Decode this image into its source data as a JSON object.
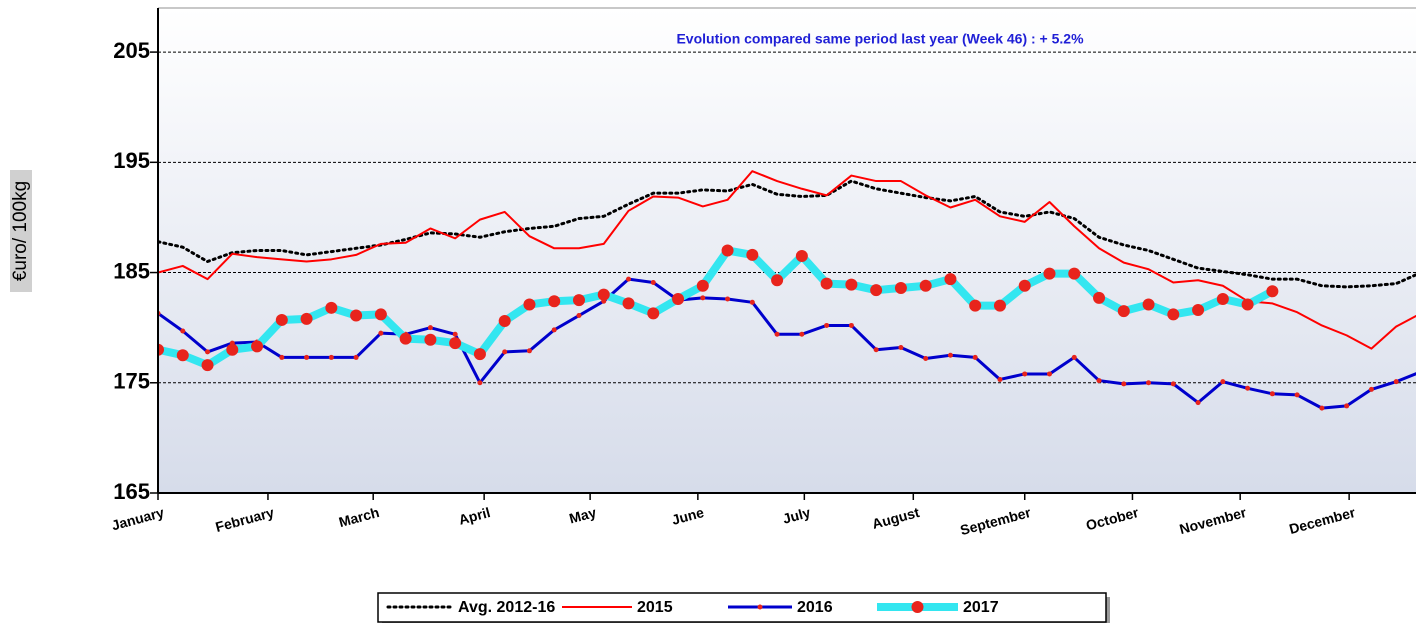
{
  "chart_data": {
    "type": "line",
    "annotation": "Evolution compared same period last year  (Week 46) : + 5.2%",
    "y_label": "€uro/ 100kg",
    "x": [
      1,
      2,
      3,
      4,
      5,
      6,
      7,
      8,
      9,
      10,
      11,
      12,
      13,
      14,
      15,
      16,
      17,
      18,
      19,
      20,
      21,
      22,
      23,
      24,
      25,
      26,
      27,
      28,
      29,
      30,
      31,
      32,
      33,
      34,
      35,
      36,
      37,
      38,
      39,
      40,
      41,
      42,
      43,
      44,
      45,
      46,
      47,
      48,
      49,
      50,
      51,
      52
    ],
    "xlim": [
      1,
      51.8
    ],
    "xticks": [
      {
        "value": 1,
        "label": "January"
      },
      {
        "value": 5.44,
        "label": "February"
      },
      {
        "value": 9.69,
        "label": "March"
      },
      {
        "value": 14.17,
        "label": "April"
      },
      {
        "value": 18.45,
        "label": "May"
      },
      {
        "value": 22.8,
        "label": "June"
      },
      {
        "value": 27.1,
        "label": "July"
      },
      {
        "value": 31.5,
        "label": "August"
      },
      {
        "value": 36.0,
        "label": "September"
      },
      {
        "value": 40.35,
        "label": "October"
      },
      {
        "value": 44.7,
        "label": "November"
      },
      {
        "value": 49.1,
        "label": "December"
      }
    ],
    "ylim": [
      165,
      209
    ],
    "yticks": [
      165,
      175,
      185,
      195,
      205
    ],
    "grid": true,
    "series": [
      {
        "name": "Avg. 2012-16",
        "color": "#000000",
        "style": "dotted",
        "values": [
          187.8,
          187.3,
          186,
          186.8,
          187,
          187,
          186.6,
          186.9,
          187.2,
          187.5,
          188,
          188.6,
          188.5,
          188.2,
          188.7,
          189,
          189.2,
          189.9,
          190.1,
          191.2,
          192.2,
          192.2,
          192.5,
          192.4,
          193,
          192.1,
          191.9,
          192,
          193.3,
          192.6,
          192.2,
          191.8,
          191.5,
          191.9,
          190.5,
          190.1,
          190.5,
          189.9,
          188.2,
          187.5,
          187,
          186.2,
          185.4,
          185.1,
          184.8,
          184.4,
          184.4,
          183.8,
          183.7,
          183.8,
          184,
          185
        ]
      },
      {
        "name": "2015",
        "color": "#ff0000",
        "style": "solid",
        "values": [
          185,
          185.6,
          184.4,
          186.7,
          186.4,
          186.2,
          186,
          186.2,
          186.6,
          187.6,
          187.7,
          189,
          188.1,
          189.8,
          190.5,
          188.3,
          187.2,
          187.2,
          187.6,
          190.6,
          191.9,
          191.8,
          191,
          191.6,
          194.2,
          193.3,
          192.6,
          192,
          193.8,
          193.3,
          193.3,
          192,
          190.9,
          191.6,
          190.1,
          189.6,
          191.4,
          189.2,
          187.2,
          185.9,
          185.3,
          184.1,
          184.3,
          183.8,
          182.4,
          182.2,
          181.4,
          180.2,
          179.3,
          178.1,
          180.1,
          181.3
        ]
      },
      {
        "name": "2016",
        "color": "#0000cc",
        "style": "small-dots",
        "marker_color": "#e8241c",
        "values": [
          181.3,
          179.7,
          177.8,
          178.6,
          178.7,
          177.3,
          177.3,
          177.3,
          177.3,
          179.5,
          179.4,
          180,
          179.4,
          175,
          177.8,
          177.9,
          179.8,
          181.1,
          182.4,
          184.4,
          184.1,
          182.5,
          182.7,
          182.6,
          182.3,
          179.4,
          179.4,
          180.2,
          180.2,
          178,
          178.2,
          177.2,
          177.5,
          177.3,
          175.3,
          175.8,
          175.8,
          177.3,
          175.2,
          174.9,
          175,
          174.9,
          173.2,
          175.1,
          174.5,
          174,
          173.9,
          172.7,
          172.9,
          174.4,
          175.1,
          176
        ]
      },
      {
        "name": "2017",
        "color": "#33e6f0",
        "style": "big-dots",
        "marker_color": "#e8241c",
        "values": [
          178,
          177.5,
          176.6,
          178,
          178.3,
          180.7,
          180.8,
          181.8,
          181.1,
          181.2,
          179,
          178.9,
          178.6,
          177.6,
          180.6,
          182.1,
          182.4,
          182.5,
          183,
          182.2,
          181.3,
          182.6,
          183.8,
          187,
          186.6,
          184.3,
          186.5,
          184,
          183.9,
          183.4,
          183.6,
          183.8,
          184.4,
          182,
          182,
          183.8,
          184.9,
          184.9,
          182.7,
          181.5,
          182.1,
          181.2,
          181.6,
          182.6,
          182.1,
          183.3,
          null,
          null,
          null,
          null,
          null,
          null
        ]
      }
    ]
  }
}
